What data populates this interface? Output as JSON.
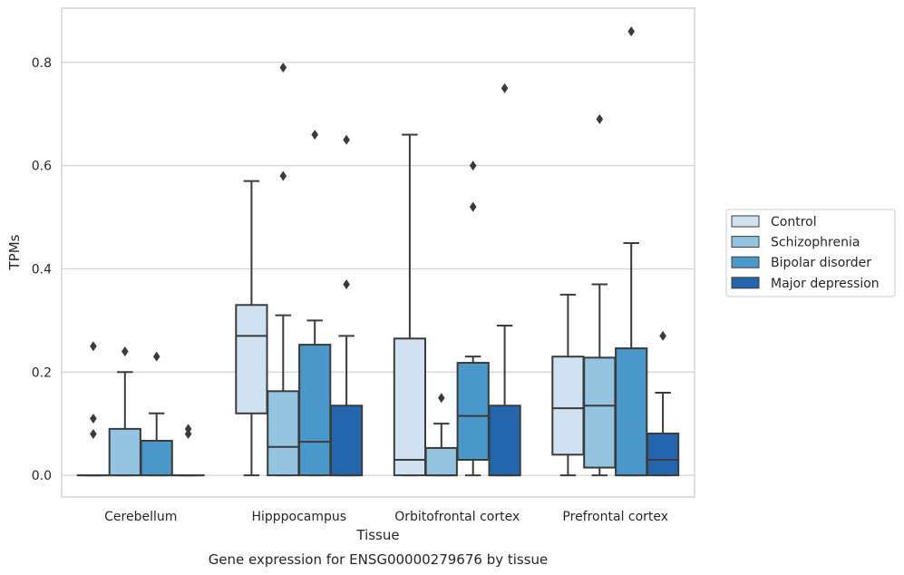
{
  "chart_data": {
    "type": "box",
    "caption": "Gene expression for ENSG00000279676 by tissue",
    "xlabel": "Tissue",
    "ylabel": "TPMs",
    "ylim": [
      -0.042,
      0.905
    ],
    "yticks": [
      0.0,
      0.2,
      0.4,
      0.6,
      0.8
    ],
    "ytick_labels": [
      "0.0",
      "0.2",
      "0.4",
      "0.6",
      "0.8"
    ],
    "grid": "horizontal",
    "legend_position": "right",
    "categories": [
      "Cerebellum",
      "Hipppocampus",
      "Orbitofrontal cortex",
      "Prefrontal cortex"
    ],
    "series": [
      {
        "name": "Control",
        "color": "#d0e1f2",
        "boxes": [
          {
            "q1": 0.0,
            "median": 0.0,
            "q3": 0.0,
            "whisker_low": 0.0,
            "whisker_high": 0.0,
            "outliers": [
              0.08,
              0.11,
              0.25
            ]
          },
          {
            "q1": 0.12,
            "median": 0.27,
            "q3": 0.33,
            "whisker_low": 0.0,
            "whisker_high": 0.57,
            "outliers": []
          },
          {
            "q1": 0.0,
            "median": 0.03,
            "q3": 0.265,
            "whisker_low": 0.0,
            "whisker_high": 0.66,
            "outliers": []
          },
          {
            "q1": 0.04,
            "median": 0.13,
            "q3": 0.23,
            "whisker_low": 0.0,
            "whisker_high": 0.35,
            "outliers": []
          }
        ]
      },
      {
        "name": "Schizophrenia",
        "color": "#94c4df",
        "boxes": [
          {
            "q1": 0.0,
            "median": 0.0,
            "q3": 0.09,
            "whisker_low": 0.0,
            "whisker_high": 0.2,
            "outliers": [
              0.24
            ]
          },
          {
            "q1": 0.0,
            "median": 0.055,
            "q3": 0.163,
            "whisker_low": 0.0,
            "whisker_high": 0.31,
            "outliers": [
              0.58,
              0.79
            ]
          },
          {
            "q1": 0.0,
            "median": 0.0,
            "q3": 0.053,
            "whisker_low": 0.0,
            "whisker_high": 0.1,
            "outliers": [
              0.15
            ]
          },
          {
            "q1": 0.015,
            "median": 0.135,
            "q3": 0.228,
            "whisker_low": 0.0,
            "whisker_high": 0.37,
            "outliers": [
              0.69
            ]
          }
        ]
      },
      {
        "name": "Bipolar disorder",
        "color": "#4a98c9",
        "boxes": [
          {
            "q1": 0.0,
            "median": 0.0,
            "q3": 0.067,
            "whisker_low": 0.0,
            "whisker_high": 0.12,
            "outliers": [
              0.23
            ]
          },
          {
            "q1": 0.0,
            "median": 0.065,
            "q3": 0.253,
            "whisker_low": 0.0,
            "whisker_high": 0.3,
            "outliers": [
              0.66
            ]
          },
          {
            "q1": 0.03,
            "median": 0.115,
            "q3": 0.218,
            "whisker_low": 0.0,
            "whisker_high": 0.23,
            "outliers": [
              0.52,
              0.6
            ]
          },
          {
            "q1": 0.0,
            "median": 0.0,
            "q3": 0.246,
            "whisker_low": 0.0,
            "whisker_high": 0.45,
            "outliers": [
              0.86
            ]
          }
        ]
      },
      {
        "name": "Major depression",
        "color": "#2366ad",
        "boxes": [
          {
            "q1": 0.0,
            "median": 0.0,
            "q3": 0.0,
            "whisker_low": 0.0,
            "whisker_high": 0.0,
            "outliers": [
              0.08,
              0.09
            ]
          },
          {
            "q1": 0.0,
            "median": 0.0,
            "q3": 0.135,
            "whisker_low": 0.0,
            "whisker_high": 0.27,
            "outliers": [
              0.37,
              0.65
            ]
          },
          {
            "q1": 0.0,
            "median": 0.0,
            "q3": 0.135,
            "whisker_low": 0.0,
            "whisker_high": 0.29,
            "outliers": [
              0.75
            ]
          },
          {
            "q1": 0.0,
            "median": 0.03,
            "q3": 0.081,
            "whisker_low": 0.0,
            "whisker_high": 0.16,
            "outliers": [
              0.27
            ]
          }
        ]
      }
    ]
  }
}
